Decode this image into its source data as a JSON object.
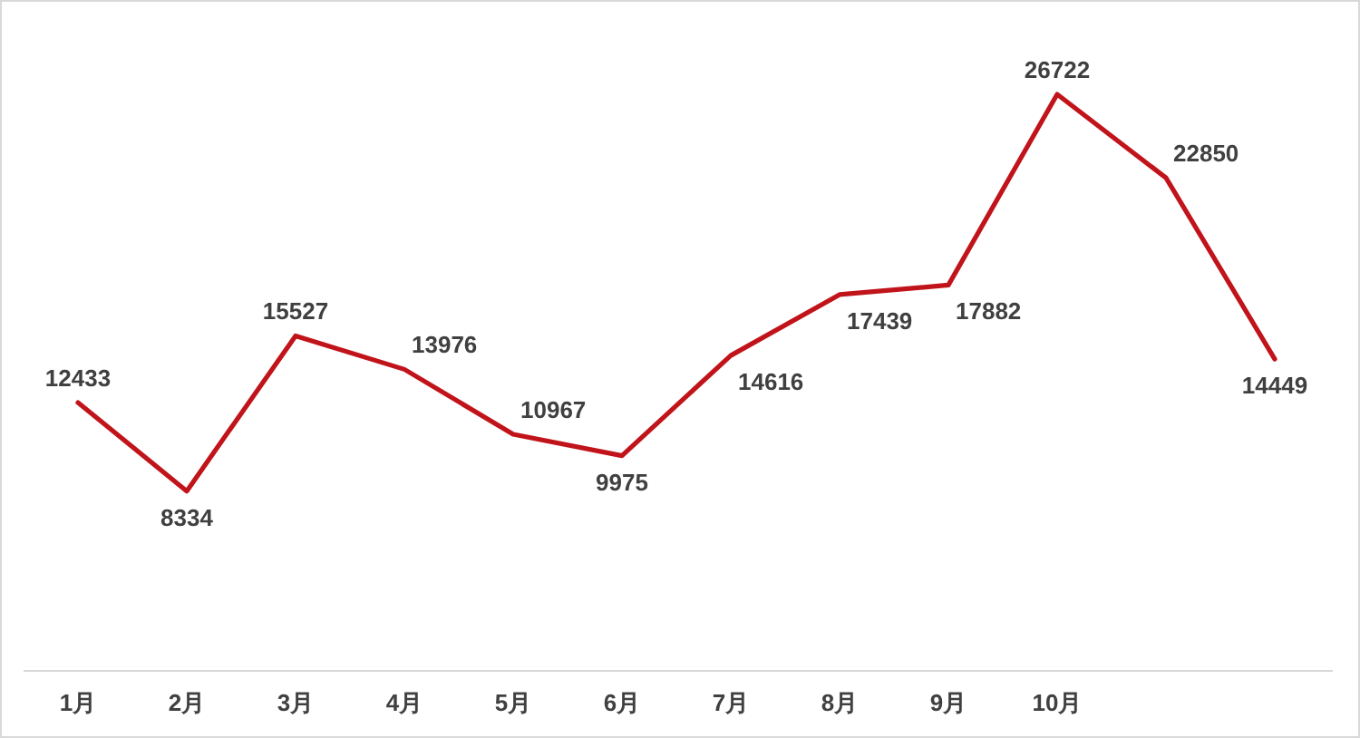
{
  "chart_data": {
    "type": "line",
    "categories": [
      "1月",
      "2月",
      "3月",
      "4月",
      "5月",
      "6月",
      "7月",
      "8月",
      "9月",
      "10月",
      null,
      null
    ],
    "series": [
      {
        "color": "#c0141a",
        "values": [
          12433,
          8334,
          15527,
          13976,
          10967,
          9975,
          14616,
          17439,
          17882,
          26722,
          22850,
          14449
        ]
      }
    ],
    "data_labels": true,
    "marker": "none"
  }
}
